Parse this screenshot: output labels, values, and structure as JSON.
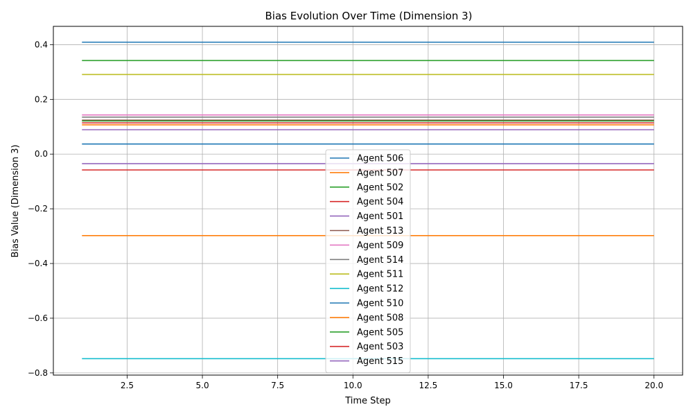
{
  "chart_data": {
    "type": "line",
    "title": "Bias Evolution Over Time (Dimension 3)",
    "xlabel": "Time Step",
    "ylabel": "Bias Value (Dimension 3)",
    "x_range": [
      1,
      20
    ],
    "xlim": [
      0.05,
      20.95
    ],
    "ylim": [
      -0.808,
      0.467
    ],
    "xticks": [
      2.5,
      5.0,
      7.5,
      10.0,
      12.5,
      15.0,
      17.5,
      20.0
    ],
    "xtick_labels": [
      "2.5",
      "5.0",
      "7.5",
      "10.0",
      "12.5",
      "15.0",
      "17.5",
      "20.0"
    ],
    "yticks": [
      -0.8,
      -0.6,
      -0.4,
      -0.2,
      0.0,
      0.2,
      0.4
    ],
    "ytick_labels": [
      "−0.8",
      "−0.6",
      "−0.4",
      "−0.2",
      "0.0",
      "0.2",
      "0.4"
    ],
    "grid": true,
    "legend_position": "lower-center",
    "series": [
      {
        "name": "Agent 506",
        "color": "#1f77b4",
        "value": 0.409
      },
      {
        "name": "Agent 507",
        "color": "#ff7f0e",
        "value": 0.107
      },
      {
        "name": "Agent 502",
        "color": "#2ca02c",
        "value": 0.342
      },
      {
        "name": "Agent 504",
        "color": "#d62728",
        "value": 0.114
      },
      {
        "name": "Agent 501",
        "color": "#9467bd",
        "value": 0.089
      },
      {
        "name": "Agent 513",
        "color": "#8c564b",
        "value": 0.124
      },
      {
        "name": "Agent 509",
        "color": "#e377c2",
        "value": 0.143
      },
      {
        "name": "Agent 514",
        "color": "#7f7f7f",
        "value": 0.135
      },
      {
        "name": "Agent 511",
        "color": "#bcbd22",
        "value": 0.291
      },
      {
        "name": "Agent 512",
        "color": "#17becf",
        "value": -0.748
      },
      {
        "name": "Agent 510",
        "color": "#1f77b4",
        "value": 0.037
      },
      {
        "name": "Agent 508",
        "color": "#ff7f0e",
        "value": -0.298
      },
      {
        "name": "Agent 505",
        "color": "#2ca02c",
        "value": 0.121
      },
      {
        "name": "Agent 503",
        "color": "#d62728",
        "value": -0.058
      },
      {
        "name": "Agent 515",
        "color": "#9467bd",
        "value": -0.035
      }
    ]
  }
}
